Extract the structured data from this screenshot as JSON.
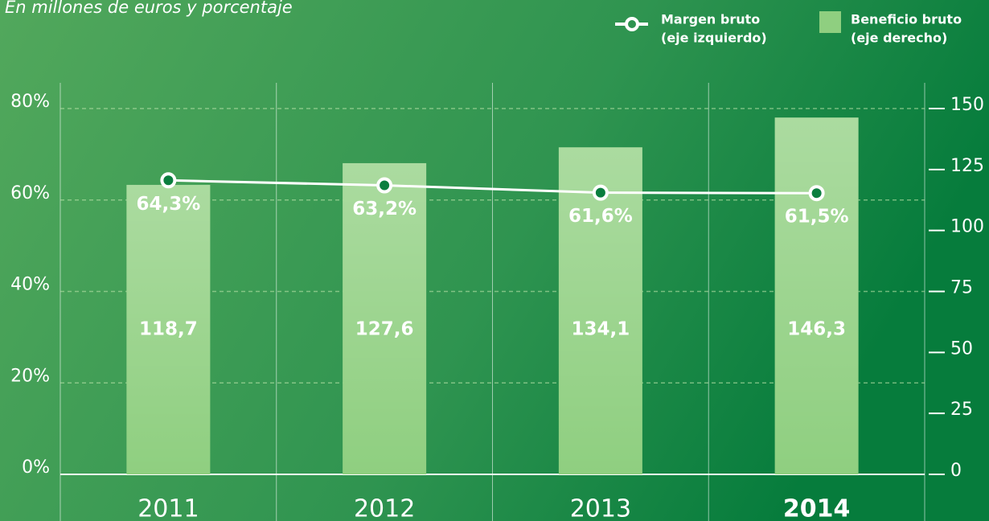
{
  "chart_data": {
    "type": "bar-line",
    "subtitle": "En millones de euros y porcentaje",
    "categories": [
      "2011",
      "2012",
      "2013",
      "2014"
    ],
    "bold_categories": [
      false,
      false,
      false,
      true
    ],
    "series": [
      {
        "name": "Beneficio bruto",
        "note": "(eje derecho)",
        "type": "bar",
        "axis": "y2",
        "color": "#8fcf80",
        "values": [
          118.7,
          127.6,
          134.1,
          146.3
        ],
        "value_labels": [
          "118,7",
          "127,6",
          "134,1",
          "146,3"
        ]
      },
      {
        "name": "Margen bruto",
        "note": "(eje izquierdo)",
        "type": "line",
        "axis": "y",
        "color": "#ffffff",
        "values": [
          64.3,
          63.2,
          61.6,
          61.5
        ],
        "value_labels": [
          "64,3%",
          "63,2%",
          "61,6%",
          "61,5%"
        ]
      }
    ],
    "ylim": [
      0,
      80
    ],
    "yticks": [
      {
        "value": 0,
        "label": "0%"
      },
      {
        "value": 20,
        "label": "20%"
      },
      {
        "value": 40,
        "label": "40%"
      },
      {
        "value": 60,
        "label": "60%"
      },
      {
        "value": 80,
        "label": "80%"
      }
    ],
    "y2lim": [
      0,
      150
    ],
    "y2ticks": [
      0,
      25,
      50,
      75,
      100,
      125,
      150
    ],
    "grid": true
  }
}
